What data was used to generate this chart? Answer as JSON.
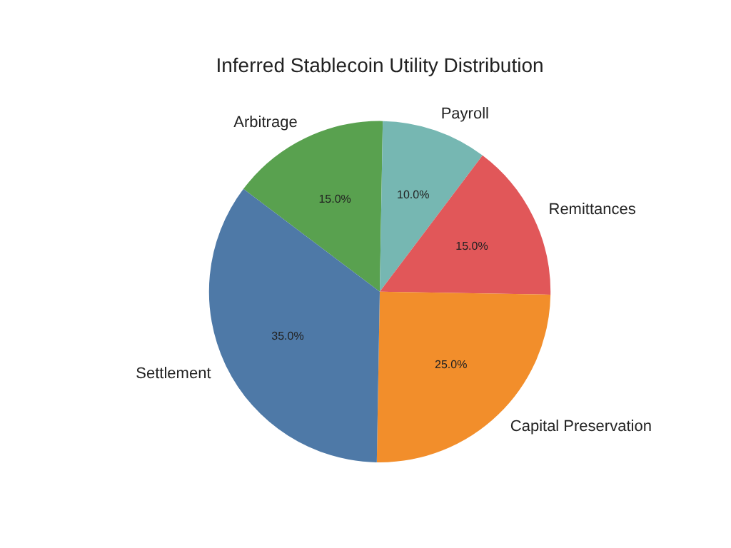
{
  "chart_data": {
    "type": "pie",
    "title": "Inferred Stablecoin Utility Distribution",
    "categories": [
      "Arbitrage",
      "Payroll",
      "Remittances",
      "Capital Preservation",
      "Settlement"
    ],
    "values": [
      15,
      10,
      15,
      25,
      35
    ],
    "colors": [
      "#59a14f",
      "#76b7b2",
      "#e15759",
      "#f28e2b",
      "#4e79a7"
    ],
    "value_labels": [
      "15.0%",
      "10.0%",
      "15.0%",
      "25.0%",
      "35.0%"
    ],
    "legend": false
  }
}
